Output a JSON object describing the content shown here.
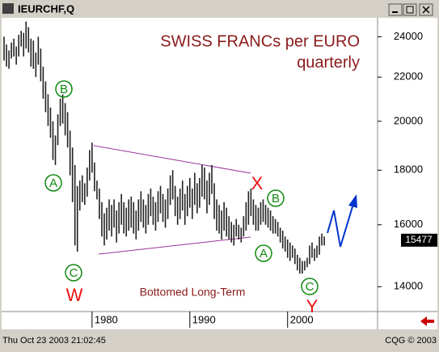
{
  "window_title": "IEURCHF,Q",
  "status_left": "Thu Oct 23 2003 21:02:45",
  "status_right": "CQG © 2003",
  "chart_data": {
    "type": "range-bar",
    "title": "SWISS FRANCs per EURO",
    "subtitle": "quarterly",
    "log_scale": true,
    "color": "#222222",
    "x": [
      1971,
      1971.25,
      1971.5,
      1971.75,
      1972,
      1972.25,
      1972.5,
      1972.75,
      1973,
      1973.25,
      1973.5,
      1973.75,
      1974,
      1974.25,
      1974.5,
      1974.75,
      1975,
      1975.25,
      1975.5,
      1975.75,
      1976,
      1976.25,
      1976.5,
      1976.75,
      1977,
      1977.25,
      1977.5,
      1977.75,
      1978,
      1978.25,
      1978.5,
      1978.75,
      1979,
      1979.25,
      1979.5,
      1979.75,
      1980,
      1980.25,
      1980.5,
      1980.75,
      1981,
      1981.25,
      1981.5,
      1981.75,
      1982,
      1982.25,
      1982.5,
      1982.75,
      1983,
      1983.25,
      1983.5,
      1983.75,
      1984,
      1984.25,
      1984.5,
      1984.75,
      1985,
      1985.25,
      1985.5,
      1985.75,
      1986,
      1986.25,
      1986.5,
      1986.75,
      1987,
      1987.25,
      1987.5,
      1987.75,
      1988,
      1988.25,
      1988.5,
      1988.75,
      1989,
      1989.25,
      1989.5,
      1989.75,
      1990,
      1990.25,
      1990.5,
      1990.75,
      1991,
      1991.25,
      1991.5,
      1991.75,
      1992,
      1992.25,
      1992.5,
      1992.75,
      1993,
      1993.25,
      1993.5,
      1993.75,
      1994,
      1994.25,
      1994.5,
      1994.75,
      1995,
      1995.25,
      1995.5,
      1995.75,
      1996,
      1996.25,
      1996.5,
      1996.75,
      1997,
      1997.25,
      1997.5,
      1997.75,
      1998,
      1998.25,
      1998.5,
      1998.75,
      1999,
      1999.25,
      1999.5,
      1999.75,
      2000,
      2000.25,
      2000.5,
      2000.75,
      2001,
      2001.25,
      2001.5,
      2001.75,
      2002,
      2002.25,
      2002.5,
      2002.75,
      2003,
      2003.25,
      2003.5,
      2003.75
    ],
    "high": [
      24000,
      23600,
      23300,
      23700,
      23900,
      23500,
      24100,
      24300,
      24200,
      24800,
      24500,
      23900,
      23800,
      23200,
      24000,
      23400,
      22500,
      21800,
      21200,
      20600,
      20000,
      19400,
      20300,
      21000,
      21200,
      20800,
      20400,
      19600,
      18900,
      18200,
      17400,
      17600,
      17800,
      17500,
      18100,
      18800,
      19100,
      18300,
      17600,
      17300,
      16800,
      16400,
      16600,
      16900,
      16700,
      16900,
      16500,
      16800,
      17100,
      16800,
      16600,
      16900,
      17000,
      16800,
      16500,
      16900,
      17200,
      16900,
      16700,
      17100,
      17300,
      17000,
      16800,
      17200,
      17400,
      17100,
      16900,
      17300,
      17800,
      18000,
      17400,
      17000,
      17300,
      17600,
      17100,
      17400,
      17700,
      17300,
      17900,
      17500,
      17700,
      18200,
      18100,
      17600,
      17900,
      18200,
      17500,
      16900,
      16700,
      16500,
      16800,
      16600,
      16300,
      16100,
      16000,
      16200,
      16000,
      15900,
      16300,
      16800,
      17200,
      17300,
      16900,
      16700,
      16600,
      16800,
      16900,
      16700,
      16600,
      16500,
      16300,
      16200,
      16100,
      15900,
      15800,
      15600,
      15500,
      15400,
      15300,
      15200,
      15000,
      14900,
      14800,
      14800,
      14900,
      15300,
      15400,
      15200,
      15300,
      15600,
      15700,
      15600
    ],
    "low": [
      22800,
      22500,
      22400,
      22900,
      23000,
      22600,
      23000,
      23500,
      23000,
      23400,
      23200,
      22500,
      22400,
      22000,
      22600,
      21800,
      21000,
      20400,
      19800,
      19300,
      18400,
      18200,
      19000,
      19800,
      19900,
      19400,
      18900,
      17800,
      16800,
      15300,
      15100,
      16500,
      16800,
      16700,
      17000,
      17600,
      17900,
      17200,
      16900,
      16200,
      15600,
      15300,
      15500,
      15800,
      15600,
      15900,
      15400,
      15700,
      16000,
      15700,
      15600,
      15800,
      15900,
      15700,
      15500,
      15800,
      16100,
      15900,
      15700,
      16000,
      16300,
      16000,
      15800,
      16100,
      16400,
      16100,
      15900,
      16200,
      16700,
      16900,
      16300,
      16000,
      16200,
      16500,
      16000,
      16300,
      16600,
      16200,
      16700,
      16400,
      16600,
      17000,
      16900,
      16400,
      16700,
      17100,
      16200,
      15800,
      15700,
      15500,
      15800,
      15600,
      15500,
      15400,
      15300,
      15600,
      15500,
      15400,
      15600,
      15800,
      16000,
      16300,
      16000,
      15800,
      15800,
      16000,
      16100,
      16000,
      15900,
      15800,
      15700,
      15700,
      15600,
      15400,
      15200,
      15100,
      14900,
      14800,
      14900,
      14700,
      14500,
      14400,
      14400,
      14500,
      14600,
      14700,
      14900,
      14800,
      14900,
      15000,
      15300,
      15300
    ],
    "last_value": 15477,
    "xlim": [
      1970.75,
      2009.2
    ],
    "xticks": [
      1980,
      1990,
      2000
    ],
    "ylim": [
      13270,
      25000
    ],
    "yticks": [
      14000,
      16000,
      18000,
      20000,
      22000,
      24000
    ],
    "annotations": [
      "A",
      "B",
      "C",
      "A",
      "B",
      "C",
      "W",
      "X",
      "Y",
      "Bottomed Long-Term"
    ]
  }
}
